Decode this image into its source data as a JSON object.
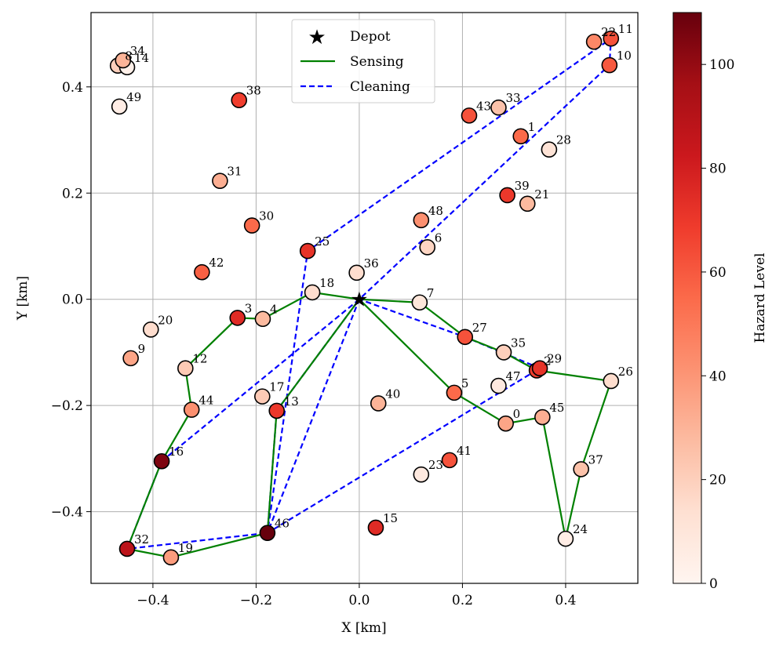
{
  "chart_data": {
    "type": "scatter",
    "xlabel": "X [km]",
    "ylabel": "Y [km]",
    "xlim": [
      -0.52,
      0.54
    ],
    "ylim": [
      -0.535,
      0.54
    ],
    "xticks": [
      -0.4,
      -0.2,
      0.0,
      0.2,
      0.4
    ],
    "xtick_labels": [
      "−0.4",
      "−0.2",
      "0.0",
      "0.2",
      "0.4"
    ],
    "yticks": [
      -0.4,
      -0.2,
      0.0,
      0.2,
      0.4
    ],
    "ytick_labels": [
      "−0.4",
      "−0.2",
      "0.0",
      "0.2",
      "0.4"
    ],
    "grid": true,
    "depot": {
      "x": 0.0,
      "y": 0.0
    },
    "points": [
      {
        "id": "0",
        "x": 0.284,
        "y": -0.234,
        "hazard": 35
      },
      {
        "id": "1",
        "x": 0.313,
        "y": 0.307,
        "hazard": 55
      },
      {
        "id": "2",
        "x": 0.344,
        "y": -0.134,
        "hazard": 68
      },
      {
        "id": "3",
        "x": -0.236,
        "y": -0.035,
        "hazard": 75
      },
      {
        "id": "4",
        "x": -0.187,
        "y": -0.037,
        "hazard": 28
      },
      {
        "id": "5",
        "x": 0.184,
        "y": -0.176,
        "hazard": 55
      },
      {
        "id": "6",
        "x": 0.132,
        "y": 0.098,
        "hazard": 18
      },
      {
        "id": "7",
        "x": 0.117,
        "y": -0.006,
        "hazard": 10
      },
      {
        "id": "8",
        "x": -0.468,
        "y": 0.44,
        "hazard": 20
      },
      {
        "id": "9",
        "x": -0.443,
        "y": -0.111,
        "hazard": 35
      },
      {
        "id": "10",
        "x": 0.485,
        "y": 0.441,
        "hazard": 60
      },
      {
        "id": "11",
        "x": 0.488,
        "y": 0.491,
        "hazard": 62
      },
      {
        "id": "12",
        "x": -0.337,
        "y": -0.13,
        "hazard": 22
      },
      {
        "id": "13",
        "x": -0.16,
        "y": -0.21,
        "hazard": 70
      },
      {
        "id": "14",
        "x": -0.45,
        "y": 0.437,
        "hazard": 3
      },
      {
        "id": "15",
        "x": 0.032,
        "y": -0.43,
        "hazard": 75
      },
      {
        "id": "16",
        "x": -0.383,
        "y": -0.305,
        "hazard": 105
      },
      {
        "id": "17",
        "x": -0.188,
        "y": -0.183,
        "hazard": 22
      },
      {
        "id": "18",
        "x": -0.091,
        "y": 0.013,
        "hazard": 15
      },
      {
        "id": "19",
        "x": -0.365,
        "y": -0.486,
        "hazard": 38
      },
      {
        "id": "20",
        "x": -0.404,
        "y": -0.057,
        "hazard": 15
      },
      {
        "id": "21",
        "x": 0.326,
        "y": 0.18,
        "hazard": 28
      },
      {
        "id": "22",
        "x": 0.455,
        "y": 0.485,
        "hazard": 45
      },
      {
        "id": "23",
        "x": 0.12,
        "y": -0.33,
        "hazard": 8
      },
      {
        "id": "24",
        "x": 0.4,
        "y": -0.451,
        "hazard": 5
      },
      {
        "id": "25",
        "x": -0.1,
        "y": 0.091,
        "hazard": 72
      },
      {
        "id": "26",
        "x": 0.488,
        "y": -0.154,
        "hazard": 15
      },
      {
        "id": "27",
        "x": 0.205,
        "y": -0.071,
        "hazard": 62
      },
      {
        "id": "28",
        "x": 0.368,
        "y": 0.282,
        "hazard": 12
      },
      {
        "id": "29",
        "x": 0.35,
        "y": -0.13,
        "hazard": 72
      },
      {
        "id": "30",
        "x": -0.208,
        "y": 0.139,
        "hazard": 55
      },
      {
        "id": "31",
        "x": -0.27,
        "y": 0.223,
        "hazard": 32
      },
      {
        "id": "32",
        "x": -0.45,
        "y": -0.47,
        "hazard": 88
      },
      {
        "id": "33",
        "x": 0.27,
        "y": 0.361,
        "hazard": 25
      },
      {
        "id": "34",
        "x": -0.458,
        "y": 0.45,
        "hazard": 30
      },
      {
        "id": "35",
        "x": 0.28,
        "y": -0.1,
        "hazard": 20
      },
      {
        "id": "36",
        "x": -0.005,
        "y": 0.05,
        "hazard": 15
      },
      {
        "id": "37",
        "x": 0.43,
        "y": -0.32,
        "hazard": 25
      },
      {
        "id": "38",
        "x": -0.233,
        "y": 0.375,
        "hazard": 68
      },
      {
        "id": "39",
        "x": 0.287,
        "y": 0.196,
        "hazard": 70
      },
      {
        "id": "40",
        "x": 0.037,
        "y": -0.196,
        "hazard": 30
      },
      {
        "id": "41",
        "x": 0.175,
        "y": -0.303,
        "hazard": 62
      },
      {
        "id": "42",
        "x": -0.305,
        "y": 0.051,
        "hazard": 58
      },
      {
        "id": "43",
        "x": 0.213,
        "y": 0.346,
        "hazard": 62
      },
      {
        "id": "44",
        "x": -0.325,
        "y": -0.208,
        "hazard": 42
      },
      {
        "id": "45",
        "x": 0.355,
        "y": -0.222,
        "hazard": 32
      },
      {
        "id": "46",
        "x": -0.178,
        "y": -0.44,
        "hazard": 110
      },
      {
        "id": "47",
        "x": 0.27,
        "y": -0.163,
        "hazard": 8
      },
      {
        "id": "48",
        "x": 0.12,
        "y": 0.149,
        "hazard": 42
      },
      {
        "id": "49",
        "x": -0.465,
        "y": 0.363,
        "hazard": 5
      }
    ],
    "sensing_path": [
      [
        0.0,
        0.0
      ],
      [
        -0.091,
        0.013
      ],
      [
        -0.187,
        -0.037
      ],
      [
        -0.236,
        -0.035
      ],
      [
        -0.337,
        -0.13
      ],
      [
        -0.325,
        -0.208
      ],
      [
        -0.383,
        -0.305
      ],
      [
        -0.45,
        -0.47
      ],
      [
        -0.365,
        -0.486
      ],
      [
        -0.178,
        -0.44
      ],
      [
        -0.16,
        -0.21
      ],
      [
        0.0,
        0.0
      ],
      [
        0.117,
        -0.006
      ],
      [
        0.205,
        -0.071
      ],
      [
        0.28,
        -0.1
      ],
      [
        0.344,
        -0.134
      ],
      [
        0.488,
        -0.154
      ],
      [
        0.43,
        -0.32
      ],
      [
        0.4,
        -0.451
      ],
      [
        0.355,
        -0.222
      ],
      [
        0.284,
        -0.234
      ],
      [
        0.184,
        -0.176
      ],
      [
        0.0,
        0.0
      ]
    ],
    "cleaning_path": [
      [
        0.0,
        0.0
      ],
      [
        -0.383,
        -0.305
      ],
      [
        -0.45,
        -0.47
      ],
      [
        -0.178,
        -0.44
      ],
      [
        -0.16,
        -0.21
      ],
      [
        0.0,
        0.0
      ],
      [
        0.205,
        -0.071
      ],
      [
        0.35,
        -0.13
      ],
      [
        -0.178,
        -0.44
      ],
      [
        0.0,
        0.0
      ],
      [
        0.485,
        0.441
      ],
      [
        0.488,
        0.491
      ],
      [
        -0.1,
        0.091
      ],
      [
        -0.178,
        -0.44
      ]
    ],
    "legend": {
      "position": "upper-center",
      "entries": [
        {
          "label": "Depot",
          "kind": "star",
          "color": "#000000"
        },
        {
          "label": "Sensing",
          "kind": "line",
          "color": "#008000"
        },
        {
          "label": "Cleaning",
          "kind": "dashed",
          "color": "#0000ff"
        }
      ]
    },
    "colorbar": {
      "label": "Hazard Level",
      "colormap": "Reds",
      "range": [
        0,
        110
      ],
      "ticks": [
        0,
        20,
        40,
        60,
        80,
        100
      ],
      "tick_labels": [
        "0",
        "20",
        "40",
        "60",
        "80",
        "100"
      ]
    }
  },
  "colors": {
    "sensing": "#008000",
    "cleaning": "#0000ff",
    "grid": "#b0b0b0",
    "axes": "#000000"
  }
}
